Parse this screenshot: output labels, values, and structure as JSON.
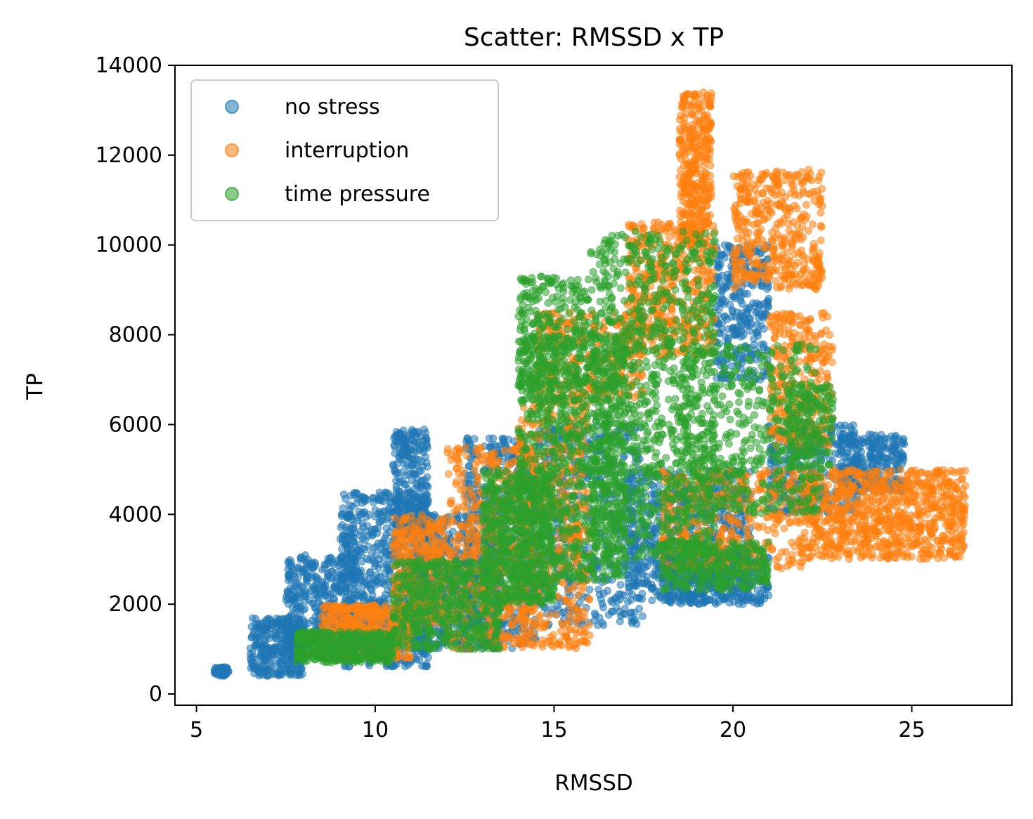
{
  "chart_data": {
    "type": "scatter",
    "title": "Scatter: RMSSD x TP",
    "xlabel": "RMSSD",
    "ylabel": "TP",
    "xlim": [
      4.4,
      27.8
    ],
    "ylim": [
      -250,
      14000
    ],
    "xticks": [
      5,
      10,
      15,
      20,
      25
    ],
    "yticks": [
      0,
      2000,
      4000,
      6000,
      8000,
      10000,
      12000,
      14000
    ],
    "grid": false,
    "legend_position": "upper-left",
    "series": [
      {
        "name": "no stress",
        "color": "#1f77b4",
        "clusters": [
          {
            "x": [
              5.5,
              5.9
            ],
            "y": [
              400,
              600
            ],
            "n": 60
          },
          {
            "x": [
              6.5,
              8.0
            ],
            "y": [
              400,
              1700
            ],
            "n": 300
          },
          {
            "x": [
              7.5,
              9.5
            ],
            "y": [
              1000,
              3100
            ],
            "n": 400
          },
          {
            "x": [
              9.0,
              11.5
            ],
            "y": [
              600,
              4500
            ],
            "n": 700
          },
          {
            "x": [
              10.5,
              11.5
            ],
            "y": [
              3500,
              5900
            ],
            "n": 250
          },
          {
            "x": [
              11.0,
              13.5
            ],
            "y": [
              1000,
              4000
            ],
            "n": 600
          },
          {
            "x": [
              12.5,
              14.5
            ],
            "y": [
              1000,
              5700
            ],
            "n": 500
          },
          {
            "x": [
              14.5,
              17.5
            ],
            "y": [
              1500,
              6000
            ],
            "n": 500
          },
          {
            "x": [
              17.0,
              20.5
            ],
            "y": [
              2000,
              5000
            ],
            "n": 600
          },
          {
            "x": [
              19.5,
              21.0
            ],
            "y": [
              7000,
              10000
            ],
            "n": 300
          },
          {
            "x": [
              21.0,
              23.5
            ],
            "y": [
              4000,
              6000
            ],
            "n": 300
          },
          {
            "x": [
              23.0,
              24.8
            ],
            "y": [
              4500,
              5800
            ],
            "n": 250
          },
          {
            "x": [
              18.0,
              21.0
            ],
            "y": [
              2000,
              3200
            ],
            "n": 350
          }
        ]
      },
      {
        "name": "interruption",
        "color": "#ff7f0e",
        "clusters": [
          {
            "x": [
              8.5,
              11.0
            ],
            "y": [
              800,
              2000
            ],
            "n": 400
          },
          {
            "x": [
              10.5,
              12.0
            ],
            "y": [
              1500,
              4000
            ],
            "n": 300
          },
          {
            "x": [
              12.0,
              14.5
            ],
            "y": [
              1000,
              5500
            ],
            "n": 500
          },
          {
            "x": [
              14.0,
              16.0
            ],
            "y": [
              1000,
              6500
            ],
            "n": 450
          },
          {
            "x": [
              14.5,
              17.5
            ],
            "y": [
              6500,
              8500
            ],
            "n": 300
          },
          {
            "x": [
              17.0,
              19.5
            ],
            "y": [
              7500,
              10500
            ],
            "n": 450
          },
          {
            "x": [
              18.5,
              19.4
            ],
            "y": [
              10000,
              13400
            ],
            "n": 350
          },
          {
            "x": [
              20.0,
              22.5
            ],
            "y": [
              9000,
              11700
            ],
            "n": 400
          },
          {
            "x": [
              21.0,
              22.8
            ],
            "y": [
              5500,
              8500
            ],
            "n": 300
          },
          {
            "x": [
              22.0,
              26.5
            ],
            "y": [
              3000,
              5000
            ],
            "n": 800
          },
          {
            "x": [
              18.0,
              22.0
            ],
            "y": [
              2800,
              5000
            ],
            "n": 400
          }
        ]
      },
      {
        "name": "time pressure",
        "color": "#2ca02c",
        "clusters": [
          {
            "x": [
              7.8,
              10.5
            ],
            "y": [
              700,
              1400
            ],
            "n": 450
          },
          {
            "x": [
              10.5,
              13.5
            ],
            "y": [
              1000,
              3000
            ],
            "n": 500
          },
          {
            "x": [
              13.0,
              15.0
            ],
            "y": [
              2000,
              5000
            ],
            "n": 600
          },
          {
            "x": [
              14.0,
              17.0
            ],
            "y": [
              2500,
              8000
            ],
            "n": 900
          },
          {
            "x": [
              14.0,
              16.0
            ],
            "y": [
              6500,
              9300
            ],
            "n": 300
          },
          {
            "x": [
              16.0,
              19.5
            ],
            "y": [
              3000,
              10300
            ],
            "n": 1000
          },
          {
            "x": [
              18.5,
              22.5
            ],
            "y": [
              4000,
              7800
            ],
            "n": 500
          },
          {
            "x": [
              18.0,
              21.0
            ],
            "y": [
              2300,
              3400
            ],
            "n": 300
          },
          {
            "x": [
              21.5,
              22.8
            ],
            "y": [
              5000,
              6900
            ],
            "n": 150
          }
        ]
      }
    ]
  }
}
